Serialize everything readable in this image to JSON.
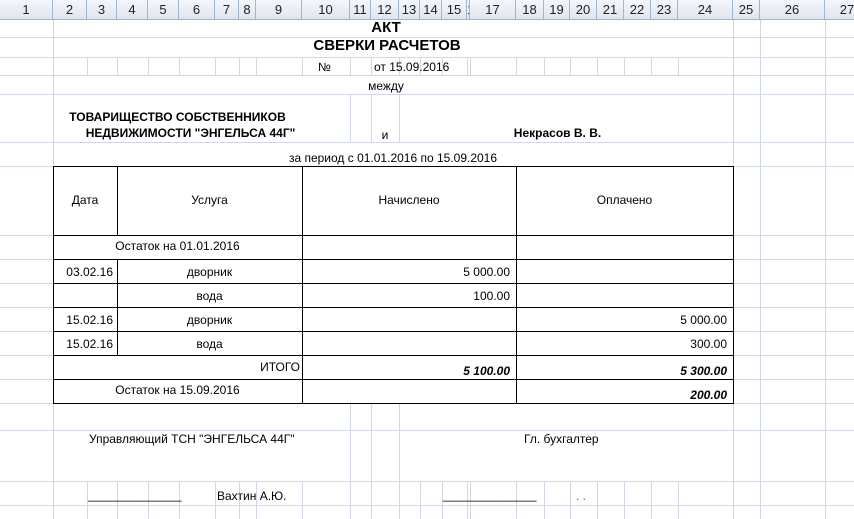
{
  "columns": [
    "1",
    "2",
    "3",
    "4",
    "5",
    "6",
    "7",
    "8",
    "9",
    "10",
    "11",
    "12",
    "13",
    "14",
    "15",
    "16",
    "17",
    "18",
    "19",
    "20",
    "21",
    "22",
    "23",
    "24",
    "25",
    "26",
    "27"
  ],
  "doc": {
    "title": "АКТ",
    "subtitle": "СВЕРКИ РАСЧЕТОВ",
    "number_label": "№",
    "date_line": "от 15.09.2016",
    "between": "между",
    "party1_line1": "ТОВАРИЩЕСТВО СОБСТВЕННИКОВ",
    "party1_line2": "НЕДВИЖИМОСТИ \"ЭНГЕЛЬСА 44Г\"",
    "and": "и",
    "party2": "Некрасов В. В.",
    "period": "за период с 01.01.2016 по 15.09.2016"
  },
  "table": {
    "headers": [
      "Дата",
      "Услуга",
      "Начислено",
      "Оплачено"
    ],
    "opening": "Остаток на 01.01.2016",
    "rows": [
      {
        "date": "03.02.16",
        "service": "дворник",
        "charged": "5 000.00",
        "paid": ""
      },
      {
        "date": "",
        "service": "вода",
        "charged": "100.00",
        "paid": ""
      },
      {
        "date": "15.02.16",
        "service": "дворник",
        "charged": "",
        "paid": "5 000.00"
      },
      {
        "date": "15.02.16",
        "service": "вода",
        "charged": "",
        "paid": "300.00"
      }
    ],
    "total_label": "ИТОГО",
    "total_charged": "5 100.00",
    "total_paid": "5 300.00",
    "closing": "Остаток на 15.09.2016",
    "closing_paid": "200.00"
  },
  "signatures": {
    "manager_title": "Управляющий ТСН \"ЭНГЕЛЬСА 44Г\"",
    "accountant_title": "Гл. бухгалтер",
    "line1": "______________",
    "manager_name": "Вахтин А.Ю.",
    "line2": "______________",
    "accountant_name": ". ."
  }
}
